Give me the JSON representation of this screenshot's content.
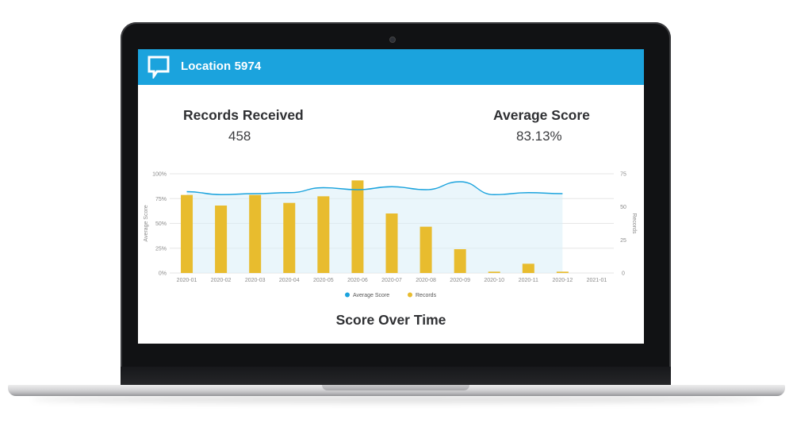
{
  "app": {
    "location_title": "Location 5974",
    "brand_color": "#1ba3dd",
    "logo_icon": "chat-bubble-logo"
  },
  "kpis": {
    "records_label": "Records Received",
    "records_value": "458",
    "score_label": "Average Score",
    "score_value": "83.13%"
  },
  "chart_data": {
    "type": "bar",
    "title": "Score Over Time",
    "categories": [
      "2020-01",
      "2020-02",
      "2020-03",
      "2020-04",
      "2020-05",
      "2020-06",
      "2020-07",
      "2020-08",
      "2020-09",
      "2020-10",
      "2020-11",
      "2020-12",
      "2021-01"
    ],
    "series": [
      {
        "name": "Records",
        "type": "bar",
        "axis": "right",
        "color": "#e8bc2e",
        "values": [
          59,
          51,
          59,
          53,
          58,
          70,
          45,
          35,
          18,
          1,
          7,
          1,
          null
        ]
      },
      {
        "name": "Average Score",
        "type": "area",
        "axis": "left",
        "color": "#1ba3dd",
        "values": [
          82,
          79,
          80,
          81,
          86,
          84,
          87,
          84,
          92,
          79,
          81,
          80,
          null
        ]
      }
    ],
    "ylabel": "Average Score",
    "y2label": "Records",
    "ylim": [
      0,
      100
    ],
    "y2lim": [
      0,
      75
    ],
    "yticks": [
      "0%",
      "25%",
      "50%",
      "75%",
      "100%"
    ],
    "y2ticks": [
      "0",
      "25",
      "50",
      "75"
    ],
    "legend": "bottom-center",
    "grid": true
  }
}
